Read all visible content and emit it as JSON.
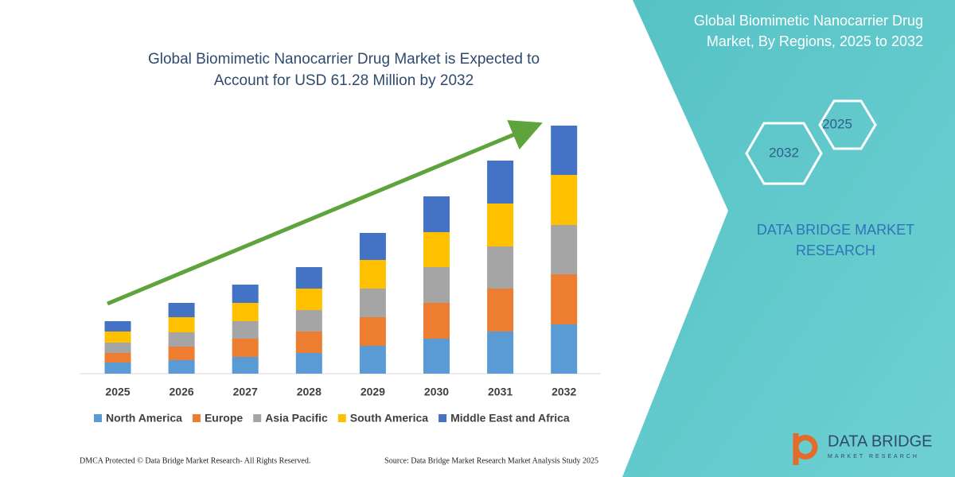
{
  "chart_data": {
    "type": "stacked-bar",
    "title": "Global Biomimetic Nanocarrier Drug Market is Expected to Account for USD 61.28 Million by 2032",
    "categories": [
      "2025",
      "2026",
      "2027",
      "2028",
      "2029",
      "2030",
      "2031",
      "2032"
    ],
    "series": [
      {
        "name": "North America",
        "color": "#5b9bd5",
        "values": [
          14,
          17,
          21,
          26,
          35,
          44,
          53,
          62
        ]
      },
      {
        "name": "Europe",
        "color": "#ed7d31",
        "values": [
          12,
          17,
          23,
          27,
          36,
          45,
          54,
          63
        ]
      },
      {
        "name": "Asia Pacific",
        "color": "#a5a5a5",
        "values": [
          13,
          18,
          22,
          27,
          36,
          45,
          53,
          62
        ]
      },
      {
        "name": "South America",
        "color": "#ffc000",
        "values": [
          14,
          19,
          23,
          27,
          36,
          44,
          54,
          63
        ]
      },
      {
        "name": "Middle East and Africa",
        "color": "#4472c4",
        "values": [
          13,
          18,
          23,
          27,
          34,
          45,
          54,
          62
        ]
      }
    ]
  },
  "panel": {
    "title": "Global Biomimetic Nanocarrier Drug Market, By Regions, 2025 to 2032",
    "hex_labels": [
      "2025",
      "2032"
    ],
    "brand": "DATA BRIDGE MARKET RESEARCH"
  },
  "logo": {
    "name": "DATA BRIDGE",
    "tagline": "MARKET RESEARCH"
  },
  "footer": {
    "left": "DMCA Protected © Data Bridge Market Research-  All Rights Reserved.",
    "right": "Source: Data Bridge Market Research  Market Analysis Study 2025"
  }
}
